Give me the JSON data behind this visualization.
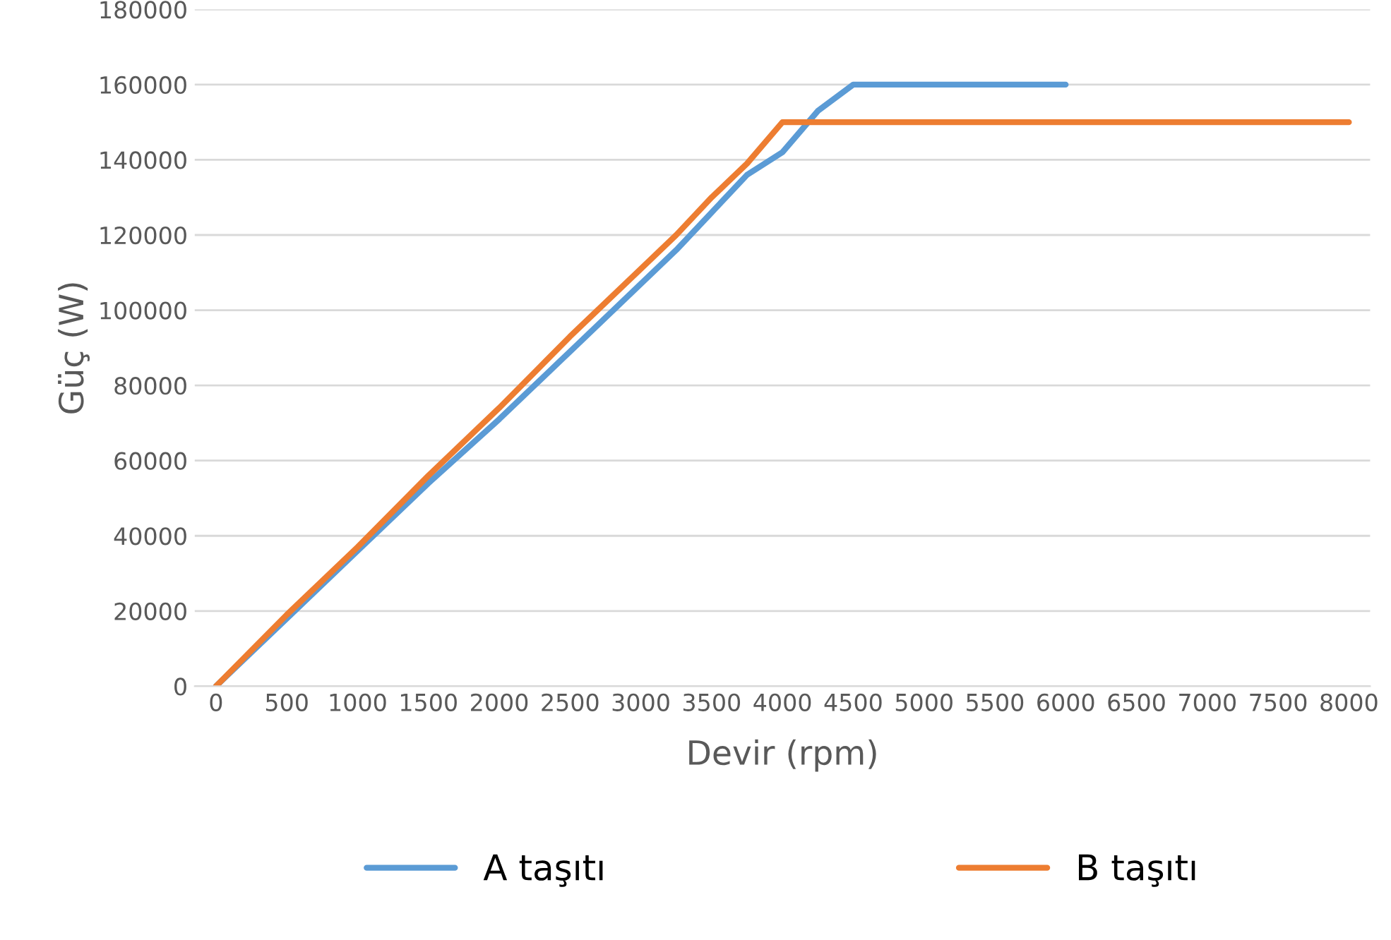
{
  "chart_data": {
    "type": "line",
    "xlabel": "Devir (rpm)",
    "ylabel": "Güç (W)",
    "series": [
      {
        "name": "A taşıtı",
        "color": "#5b9bd5",
        "x": [
          0,
          500,
          1000,
          1500,
          2000,
          2500,
          3000,
          3250,
          3500,
          3750,
          4000,
          4250,
          4500,
          6000
        ],
        "values": [
          0,
          18000,
          36000,
          54000,
          71000,
          89000,
          107000,
          116000,
          126000,
          136000,
          142000,
          153000,
          160000,
          160000
        ]
      },
      {
        "name": "B taşıtı",
        "color": "#ed7d31",
        "x": [
          0,
          500,
          1000,
          1500,
          2000,
          2500,
          3000,
          3250,
          3500,
          3750,
          4000,
          8000
        ],
        "values": [
          0,
          19000,
          37000,
          56000,
          74000,
          93000,
          111000,
          120000,
          130000,
          139000,
          150000,
          150000
        ]
      }
    ],
    "xlim": [
      -150,
      8150
    ],
    "xticks": [
      0,
      500,
      1000,
      1500,
      2000,
      2500,
      3000,
      3500,
      4000,
      4500,
      5000,
      5500,
      6000,
      6500,
      7000,
      7500,
      8000
    ],
    "ylim": [
      0,
      180000
    ],
    "yticks": [
      0,
      20000,
      40000,
      60000,
      80000,
      100000,
      120000,
      140000,
      160000,
      180000
    ],
    "grid": "y",
    "legend": "bottom",
    "marker": "none",
    "line_style": "solid"
  }
}
